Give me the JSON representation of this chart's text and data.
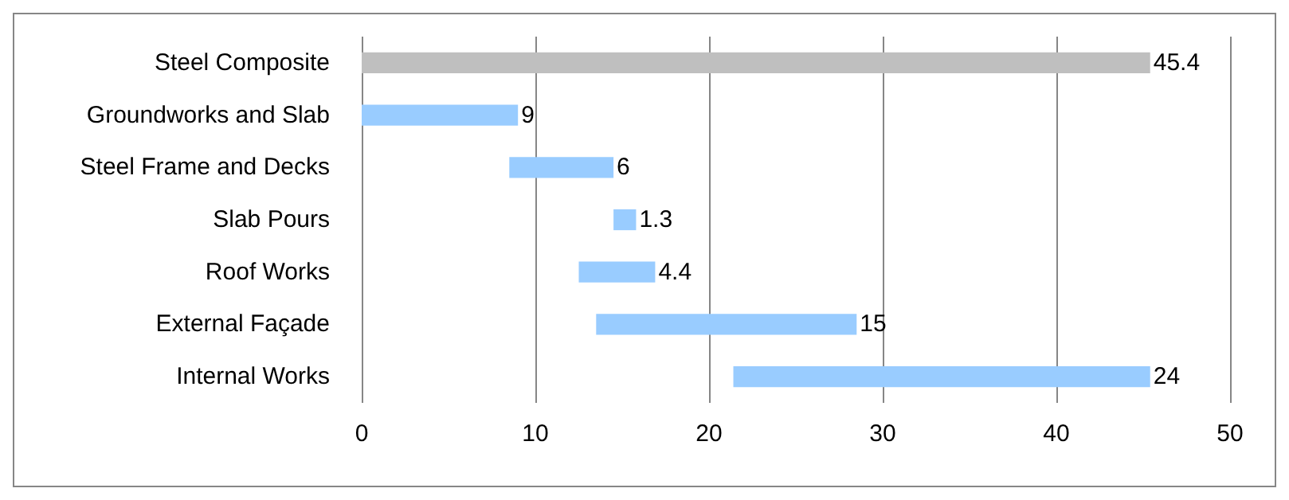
{
  "chart_data": {
    "type": "bar",
    "orientation": "horizontal",
    "categories": [
      "Steel Composite",
      "Groundworks and Slab",
      "Steel Frame and Decks",
      "Slab Pours",
      "Roof Works",
      "External Façade",
      "Internal Works"
    ],
    "base": [
      0,
      0,
      8.5,
      14.5,
      12.5,
      13.5,
      21.4
    ],
    "values": [
      45.4,
      9,
      6,
      1.3,
      4.4,
      15,
      24
    ],
    "colors": [
      "#bfbfbf",
      "#99ccff",
      "#99ccff",
      "#99ccff",
      "#99ccff",
      "#99ccff",
      "#99ccff"
    ],
    "xlim": [
      0,
      50
    ],
    "xticks": [
      0,
      10,
      20,
      30,
      40,
      50
    ],
    "grid": "x",
    "data_labels": true
  }
}
